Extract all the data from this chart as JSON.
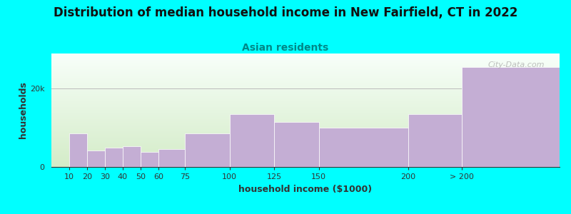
{
  "title": "Distribution of median household income in New Fairfield, CT in 2022",
  "subtitle": "Asian residents",
  "xlabel": "household income ($1000)",
  "ylabel": "households",
  "bar_color": "#c4aed4",
  "background_color": "#00ffff",
  "plot_bg_top": "#f8fffa",
  "plot_bg_bottom": "#d4ecc8",
  "categories": [
    "10",
    "20",
    "30",
    "40",
    "50",
    "60",
    "75",
    "100",
    "125",
    "150",
    "200",
    "> 200"
  ],
  "x_positions": [
    10,
    20,
    30,
    40,
    50,
    60,
    75,
    100,
    125,
    150,
    200,
    230
  ],
  "widths": [
    10,
    10,
    10,
    10,
    10,
    15,
    25,
    25,
    25,
    50,
    30,
    55
  ],
  "values": [
    8500,
    4200,
    5000,
    5200,
    3800,
    4500,
    8500,
    13500,
    11500,
    10000,
    13500,
    25500
  ],
  "ylim": [
    0,
    29000
  ],
  "ytick_vals": [
    0,
    20000
  ],
  "ytick_labels": [
    "0",
    "20k"
  ],
  "watermark": "City-Data.com",
  "title_fontsize": 12,
  "subtitle_fontsize": 10,
  "label_fontsize": 9,
  "tick_fontsize": 8,
  "title_color": "#111111",
  "subtitle_color": "#008888",
  "label_color": "#333333",
  "tick_color": "#333333",
  "grid_color": "#bbbbbb"
}
